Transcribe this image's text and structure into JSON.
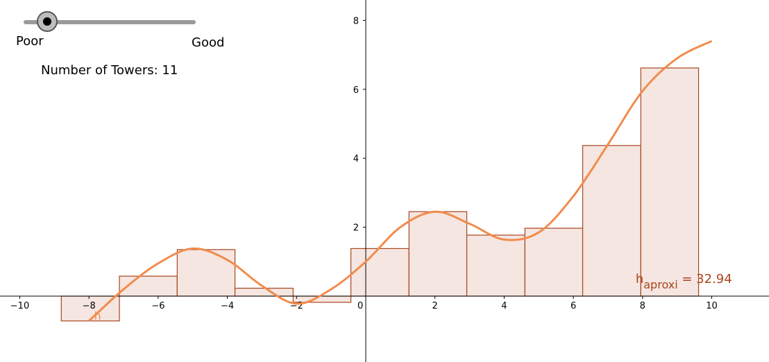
{
  "slider": {
    "min_label": "Poor",
    "max_label": "Good",
    "value": 0.09
  },
  "towers_label": "Number of Towers: 11",
  "colors": {
    "curve": "#f28b4b",
    "bar_fill": "#f5e6e1",
    "bar_stroke": "#a8441c",
    "annotation": "#a8441c",
    "axis": "#000000"
  },
  "chart_data": {
    "type": "bar",
    "x_range": [
      -10,
      11
    ],
    "y_range": [
      -1,
      8
    ],
    "x_ticks": [
      "−10",
      "−8",
      "−6",
      "−4",
      "−2",
      "0",
      "2",
      "4",
      "6",
      "8",
      "10"
    ],
    "y_ticks": [
      "2",
      "4",
      "6",
      "8"
    ],
    "bars": [
      {
        "x0": -8.8,
        "x1": -7.12,
        "value": -0.72
      },
      {
        "x0": -7.12,
        "x1": -5.45,
        "value": 0.58
      },
      {
        "x0": -5.45,
        "x1": -3.78,
        "value": 1.35
      },
      {
        "x0": -3.78,
        "x1": -2.1,
        "value": 0.23
      },
      {
        "x0": -2.1,
        "x1": -0.43,
        "value": -0.18
      },
      {
        "x0": -0.43,
        "x1": 1.25,
        "value": 1.38
      },
      {
        "x0": 1.25,
        "x1": 2.92,
        "value": 2.45
      },
      {
        "x0": 2.92,
        "x1": 4.6,
        "value": 1.77
      },
      {
        "x0": 4.6,
        "x1": 6.27,
        "value": 1.97
      },
      {
        "x0": 6.27,
        "x1": 7.95,
        "value": 4.37
      },
      {
        "x0": 7.95,
        "x1": 9.62,
        "value": 6.62
      }
    ],
    "curve": {
      "name": "h",
      "points": [
        [
          -8,
          -0.72
        ],
        [
          -7,
          0.2
        ],
        [
          -6,
          0.95
        ],
        [
          -5,
          1.38
        ],
        [
          -4,
          1.05
        ],
        [
          -3,
          0.3
        ],
        [
          -2,
          -0.22
        ],
        [
          -1,
          0.2
        ],
        [
          0,
          1.0
        ],
        [
          1,
          2.0
        ],
        [
          2,
          2.45
        ],
        [
          3,
          2.1
        ],
        [
          4,
          1.64
        ],
        [
          5,
          1.85
        ],
        [
          6,
          2.9
        ],
        [
          7,
          4.4
        ],
        [
          8,
          5.95
        ],
        [
          9,
          6.9
        ],
        [
          10,
          7.4
        ]
      ]
    },
    "annotation": {
      "base": "h",
      "subscript": "aproxi",
      "value_text": " = 32.94"
    }
  }
}
